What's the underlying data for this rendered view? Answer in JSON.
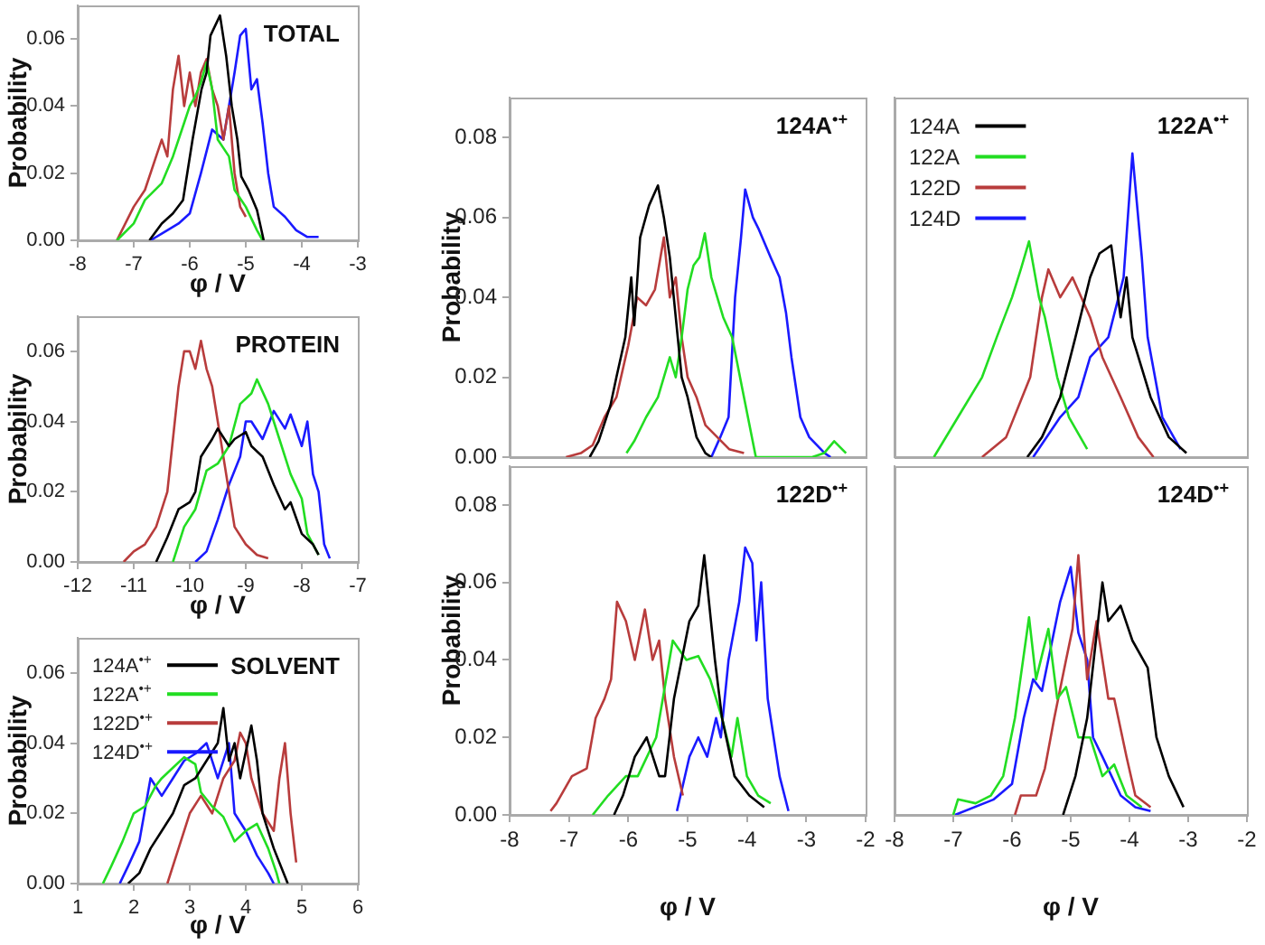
{
  "chart_data": [
    {
      "type": "line",
      "title": "TOTAL",
      "xlabel": "φ / V",
      "ylabel": "Probability",
      "xlim": [
        -8,
        -3
      ],
      "xticks": [
        -8,
        -7,
        -6,
        -5,
        -4,
        -3
      ],
      "ylim": [
        0,
        0.07
      ],
      "yticks": [
        {
          "value": 0,
          "label": "0.00"
        },
        {
          "value": 0.02,
          "label": "0.02"
        },
        {
          "value": 0.04,
          "label": "0.04"
        },
        {
          "value": 0.06,
          "label": "0.06"
        }
      ],
      "grid": false,
      "series": [
        {
          "color": "#000000",
          "x": [
            -6.72,
            -6.5,
            -6.3,
            -6.12,
            -5.95,
            -5.79,
            -5.7,
            -5.63,
            -5.46,
            -5.35,
            -5.25,
            -5.15,
            -5.08,
            -4.95,
            -4.8,
            -4.68
          ],
          "values": [
            0,
            0.005,
            0.008,
            0.012,
            0.03,
            0.045,
            0.05,
            0.061,
            0.067,
            0.055,
            0.04,
            0.03,
            0.019,
            0.015,
            0.009,
            0
          ]
        },
        {
          "color": "#22dd22",
          "x": [
            -7.3,
            -7.0,
            -6.8,
            -6.5,
            -6.3,
            -6.1,
            -6.0,
            -5.9,
            -5.8,
            -5.7,
            -5.6,
            -5.5,
            -5.3,
            -5.2,
            -5.0,
            -4.8,
            -4.7
          ],
          "values": [
            0,
            0.005,
            0.012,
            0.017,
            0.025,
            0.035,
            0.04,
            0.043,
            0.047,
            0.053,
            0.045,
            0.03,
            0.025,
            0.015,
            0.01,
            0.003,
            0
          ]
        },
        {
          "color": "#b83c3c",
          "x": [
            -7.3,
            -7.0,
            -6.8,
            -6.6,
            -6.5,
            -6.4,
            -6.3,
            -6.2,
            -6.1,
            -6.0,
            -5.9,
            -5.8,
            -5.7,
            -5.6,
            -5.5,
            -5.4,
            -5.3,
            -5.2,
            -5.1,
            -5.0
          ],
          "values": [
            0,
            0.01,
            0.015,
            0.025,
            0.03,
            0.025,
            0.045,
            0.055,
            0.04,
            0.05,
            0.04,
            0.05,
            0.054,
            0.045,
            0.04,
            0.03,
            0.04,
            0.02,
            0.01,
            0.007
          ]
        },
        {
          "color": "#1a1aff",
          "x": [
            -6.7,
            -6.4,
            -6.2,
            -6.0,
            -5.8,
            -5.6,
            -5.4,
            -5.3,
            -5.2,
            -5.1,
            -5.0,
            -4.9,
            -4.8,
            -4.7,
            -4.6,
            -4.5,
            -4.3,
            -4.1,
            -3.9,
            -3.7
          ],
          "values": [
            0,
            0.003,
            0.005,
            0.008,
            0.02,
            0.033,
            0.03,
            0.04,
            0.05,
            0.061,
            0.063,
            0.045,
            0.048,
            0.035,
            0.02,
            0.01,
            0.007,
            0.003,
            0.001,
            0.001
          ]
        }
      ]
    },
    {
      "type": "line",
      "title": "PROTEIN",
      "xlabel": "φ / V",
      "ylabel": "Probability",
      "xlim": [
        -12,
        -7
      ],
      "xticks": [
        -12,
        -11,
        -10,
        -9,
        -8,
        -7
      ],
      "ylim": [
        0,
        0.07
      ],
      "yticks": [
        {
          "value": 0,
          "label": "0.00"
        },
        {
          "value": 0.02,
          "label": "0.02"
        },
        {
          "value": 0.04,
          "label": "0.04"
        },
        {
          "value": 0.06,
          "label": "0.06"
        }
      ],
      "grid": false,
      "series": [
        {
          "color": "#000000",
          "x": [
            -10.6,
            -10.4,
            -10.2,
            -10.0,
            -9.9,
            -9.8,
            -9.6,
            -9.5,
            -9.3,
            -9.2,
            -9.0,
            -8.9,
            -8.7,
            -8.5,
            -8.3,
            -8.2,
            -8.0,
            -7.8,
            -7.7
          ],
          "values": [
            0,
            0.007,
            0.015,
            0.017,
            0.02,
            0.03,
            0.035,
            0.038,
            0.033,
            0.035,
            0.037,
            0.033,
            0.03,
            0.022,
            0.015,
            0.017,
            0.008,
            0.005,
            0.002
          ]
        },
        {
          "color": "#22dd22",
          "x": [
            -10.3,
            -10.1,
            -9.9,
            -9.7,
            -9.5,
            -9.3,
            -9.1,
            -8.9,
            -8.8,
            -8.6,
            -8.4,
            -8.2,
            -8.0,
            -7.9,
            -7.7
          ],
          "values": [
            0,
            0.01,
            0.015,
            0.026,
            0.028,
            0.033,
            0.045,
            0.048,
            0.052,
            0.045,
            0.035,
            0.025,
            0.018,
            0.008,
            0.002
          ]
        },
        {
          "color": "#b83c3c",
          "x": [
            -11.18,
            -11.0,
            -10.8,
            -10.6,
            -10.4,
            -10.3,
            -10.2,
            -10.1,
            -10.0,
            -9.9,
            -9.8,
            -9.7,
            -9.6,
            -9.5,
            -9.4,
            -9.3,
            -9.2,
            -9.0,
            -8.8,
            -8.6
          ],
          "values": [
            0,
            0.003,
            0.005,
            0.01,
            0.02,
            0.035,
            0.05,
            0.06,
            0.06,
            0.055,
            0.063,
            0.055,
            0.05,
            0.04,
            0.03,
            0.02,
            0.01,
            0.005,
            0.002,
            0.001
          ]
        },
        {
          "color": "#1a1aff",
          "x": [
            -9.9,
            -9.7,
            -9.5,
            -9.3,
            -9.1,
            -9.0,
            -8.9,
            -8.7,
            -8.5,
            -8.3,
            -8.2,
            -8.0,
            -7.9,
            -7.8,
            -7.7,
            -7.6,
            -7.5
          ],
          "values": [
            0,
            0.003,
            0.012,
            0.022,
            0.03,
            0.04,
            0.04,
            0.035,
            0.043,
            0.038,
            0.042,
            0.033,
            0.04,
            0.025,
            0.02,
            0.005,
            0.001
          ]
        }
      ]
    },
    {
      "type": "line",
      "title": "SOLVENT",
      "xlabel": "φ / V",
      "ylabel": "Probability",
      "xlim": [
        1,
        6
      ],
      "xticks": [
        1,
        2,
        3,
        4,
        5,
        6
      ],
      "ylim": [
        0,
        0.07
      ],
      "yticks": [
        {
          "value": 0,
          "label": "0.00"
        },
        {
          "value": 0.02,
          "label": "0.02"
        },
        {
          "value": 0.04,
          "label": "0.04"
        },
        {
          "value": 0.06,
          "label": "0.06"
        }
      ],
      "grid": false,
      "legend": "top left",
      "series": [
        {
          "name": "124A$^{•+}$",
          "color": "#000000",
          "x": [
            1.9,
            2.1,
            2.3,
            2.5,
            2.7,
            2.9,
            3.1,
            3.3,
            3.5,
            3.6,
            3.7,
            3.8,
            3.9,
            4.1,
            4.2,
            4.3,
            4.5,
            4.7,
            4.75
          ],
          "values": [
            0,
            0.003,
            0.01,
            0.015,
            0.02,
            0.028,
            0.03,
            0.035,
            0.04,
            0.05,
            0.035,
            0.04,
            0.03,
            0.045,
            0.035,
            0.02,
            0.01,
            0.002,
            0
          ]
        },
        {
          "name": "122A$^{•+}$",
          "color": "#22dd22",
          "x": [
            1.45,
            1.6,
            1.8,
            2.0,
            2.2,
            2.4,
            2.5,
            2.7,
            2.9,
            3.1,
            3.2,
            3.4,
            3.6,
            3.8,
            4.0,
            4.2,
            4.4,
            4.55,
            4.6
          ],
          "values": [
            0,
            0.005,
            0.012,
            0.02,
            0.022,
            0.028,
            0.03,
            0.033,
            0.036,
            0.034,
            0.026,
            0.022,
            0.019,
            0.012,
            0.015,
            0.017,
            0.01,
            0.003,
            0
          ]
        },
        {
          "name": "122D$^{•+}$",
          "color": "#b83c3c",
          "x": [
            2.6,
            2.8,
            3.0,
            3.2,
            3.4,
            3.6,
            3.8,
            3.9,
            4.0,
            4.1,
            4.3,
            4.5,
            4.6,
            4.7,
            4.8,
            4.9
          ],
          "values": [
            0,
            0.01,
            0.02,
            0.025,
            0.02,
            0.03,
            0.035,
            0.043,
            0.04,
            0.03,
            0.02,
            0.015,
            0.03,
            0.04,
            0.02,
            0.006
          ]
        },
        {
          "name": "124D$^{•+}$",
          "color": "#1a1aff",
          "x": [
            1.75,
            1.9,
            2.1,
            2.3,
            2.5,
            2.7,
            2.9,
            3.1,
            3.3,
            3.5,
            3.7,
            3.8,
            4.0,
            4.2,
            4.4,
            4.5
          ],
          "values": [
            0,
            0.005,
            0.012,
            0.03,
            0.025,
            0.03,
            0.035,
            0.037,
            0.04,
            0.03,
            0.04,
            0.02,
            0.015,
            0.008,
            0.003,
            0
          ]
        }
      ]
    },
    {
      "type": "line",
      "title": "124A$^{•+}$",
      "ylabel": "Probability",
      "xlim": [
        -8,
        -2
      ],
      "ylim": [
        0,
        0.09
      ],
      "yticks": [
        {
          "value": 0,
          "label": "0.00"
        },
        {
          "value": 0.02,
          "label": "0.02"
        },
        {
          "value": 0.04,
          "label": "0.04"
        },
        {
          "value": 0.06,
          "label": "0.06"
        },
        {
          "value": 0.08,
          "label": "0.08"
        }
      ],
      "grid": false,
      "tick_labels": "y",
      "series": [
        {
          "color": "#000000",
          "x": [
            -6.65,
            -6.5,
            -6.3,
            -6.2,
            -6.05,
            -5.95,
            -5.9,
            -5.8,
            -5.65,
            -5.5,
            -5.4,
            -5.3,
            -5.2,
            -5.1,
            -5.0,
            -4.85,
            -4.7,
            -4.6
          ],
          "values": [
            0,
            0.004,
            0.013,
            0.02,
            0.03,
            0.045,
            0.033,
            0.055,
            0.063,
            0.068,
            0.06,
            0.05,
            0.035,
            0.02,
            0.015,
            0.005,
            0.001,
            0
          ]
        },
        {
          "color": "#22dd22",
          "x": [
            -6.03,
            -5.9,
            -5.7,
            -5.5,
            -5.3,
            -5.2,
            -5.1,
            -5.0,
            -4.9,
            -4.8,
            -4.71,
            -4.6,
            -4.5,
            -4.4,
            -4.25,
            -4.05,
            -3.85,
            -2.9,
            -2.7,
            -2.53,
            -2.33
          ],
          "values": [
            0.001,
            0.004,
            0.01,
            0.015,
            0.025,
            0.02,
            0.03,
            0.042,
            0.048,
            0.05,
            0.056,
            0.045,
            0.04,
            0.035,
            0.03,
            0.015,
            0,
            0,
            0.001,
            0.004,
            0.001
          ]
        },
        {
          "color": "#b83c3c",
          "x": [
            -7.05,
            -6.8,
            -6.6,
            -6.4,
            -6.2,
            -6.0,
            -5.85,
            -5.7,
            -5.55,
            -5.4,
            -5.3,
            -5.2,
            -5.1,
            -5.0,
            -4.85,
            -4.7,
            -4.5,
            -4.3,
            -4.05
          ],
          "values": [
            0,
            0.001,
            0.003,
            0.01,
            0.015,
            0.028,
            0.04,
            0.038,
            0.042,
            0.055,
            0.04,
            0.045,
            0.03,
            0.02,
            0.015,
            0.008,
            0.005,
            0.002,
            0.001
          ]
        },
        {
          "color": "#1a1aff",
          "x": [
            -4.6,
            -4.45,
            -4.31,
            -4.2,
            -4.1,
            -4.03,
            -3.9,
            -3.8,
            -3.6,
            -3.45,
            -3.34,
            -3.25,
            -3.1,
            -2.95,
            -2.69,
            -2.59
          ],
          "values": [
            0,
            0.005,
            0.01,
            0.04,
            0.055,
            0.067,
            0.06,
            0.057,
            0.05,
            0.045,
            0.036,
            0.025,
            0.01,
            0.005,
            0.001,
            0
          ]
        }
      ]
    },
    {
      "type": "line",
      "title": "122A$^{•+}$",
      "xlim": [
        -8,
        -2
      ],
      "ylim": [
        0,
        0.09
      ],
      "grid": false,
      "tick_labels": false,
      "legend": "top left",
      "series": [
        {
          "name": "124A",
          "color": "#000000",
          "x": [
            -5.74,
            -5.49,
            -5.18,
            -4.92,
            -4.67,
            -4.51,
            -4.31,
            -4.15,
            -4.05,
            -3.95,
            -3.64,
            -3.33,
            -3.03
          ],
          "values": [
            0,
            0.005,
            0.015,
            0.03,
            0.045,
            0.051,
            0.053,
            0.035,
            0.045,
            0.03,
            0.015,
            0.005,
            0.001
          ]
        },
        {
          "name": "122A",
          "color": "#22dd22",
          "x": [
            -7.33,
            -6.92,
            -6.51,
            -6.26,
            -6.0,
            -5.85,
            -5.71,
            -5.54,
            -5.44,
            -5.23,
            -5.03,
            -4.72
          ],
          "values": [
            0,
            0.01,
            0.02,
            0.03,
            0.04,
            0.047,
            0.054,
            0.04,
            0.035,
            0.02,
            0.01,
            0.002
          ]
        },
        {
          "name": "122D",
          "color": "#b83c3c",
          "x": [
            -6.51,
            -6.1,
            -5.69,
            -5.49,
            -5.38,
            -5.18,
            -4.97,
            -4.67,
            -4.46,
            -4.15,
            -3.85,
            -3.59
          ],
          "values": [
            0,
            0.005,
            0.02,
            0.04,
            0.047,
            0.04,
            0.045,
            0.035,
            0.025,
            0.015,
            0.005,
            0
          ]
        },
        {
          "name": "124D",
          "color": "#1a1aff",
          "x": [
            -5.64,
            -5.18,
            -4.87,
            -4.67,
            -4.36,
            -4.1,
            -3.95,
            -3.79,
            -3.69,
            -3.44,
            -3.13
          ],
          "values": [
            0,
            0.01,
            0.015,
            0.025,
            0.03,
            0.045,
            0.076,
            0.05,
            0.03,
            0.01,
            0.002
          ]
        }
      ]
    },
    {
      "type": "line",
      "title": "122D$^{•+}$",
      "xlabel": "φ / V",
      "ylabel": "Probability",
      "xlim": [
        -8,
        -2
      ],
      "xticks": [
        -8,
        -7,
        -6,
        -5,
        -4,
        -3,
        -2
      ],
      "ylim": [
        0,
        0.09
      ],
      "yticks": [
        {
          "value": 0,
          "label": "0.00"
        },
        {
          "value": 0.02,
          "label": "0.02"
        },
        {
          "value": 0.04,
          "label": "0.04"
        },
        {
          "value": 0.06,
          "label": "0.06"
        },
        {
          "value": 0.08,
          "label": "0.08"
        }
      ],
      "grid": false,
      "series": [
        {
          "color": "#000000",
          "x": [
            -6.24,
            -6.09,
            -5.89,
            -5.69,
            -5.48,
            -5.38,
            -5.23,
            -4.97,
            -4.82,
            -4.72,
            -4.54,
            -4.42,
            -4.21,
            -3.96,
            -3.71
          ],
          "values": [
            0,
            0.005,
            0.015,
            0.02,
            0.01,
            0.01,
            0.03,
            0.05,
            0.054,
            0.067,
            0.04,
            0.025,
            0.01,
            0.005,
            0.002
          ]
        },
        {
          "color": "#22dd22",
          "x": [
            -6.6,
            -6.34,
            -6.04,
            -5.84,
            -5.53,
            -5.25,
            -5.02,
            -4.82,
            -4.62,
            -4.42,
            -4.26,
            -4.16,
            -4.0,
            -3.81,
            -3.6
          ],
          "values": [
            0,
            0.005,
            0.01,
            0.01,
            0.02,
            0.045,
            0.04,
            0.041,
            0.035,
            0.025,
            0.015,
            0.025,
            0.01,
            0.005,
            0.003
          ]
        },
        {
          "color": "#b83c3c",
          "x": [
            -7.31,
            -7.21,
            -6.95,
            -6.7,
            -6.55,
            -6.4,
            -6.29,
            -6.19,
            -6.04,
            -5.89,
            -5.72,
            -5.59,
            -5.48,
            -5.38,
            -5.23,
            -5.08
          ],
          "values": [
            0.001,
            0.003,
            0.01,
            0.012,
            0.025,
            0.03,
            0.035,
            0.055,
            0.05,
            0.04,
            0.053,
            0.04,
            0.045,
            0.03,
            0.015,
            0.005
          ]
        },
        {
          "color": "#1a1aff",
          "x": [
            -5.18,
            -4.97,
            -4.82,
            -4.67,
            -4.52,
            -4.44,
            -4.31,
            -4.13,
            -4.03,
            -3.91,
            -3.84,
            -3.76,
            -3.65,
            -3.45,
            -3.3
          ],
          "values": [
            0.001,
            0.015,
            0.02,
            0.015,
            0.025,
            0.02,
            0.04,
            0.055,
            0.069,
            0.065,
            0.045,
            0.06,
            0.03,
            0.01,
            0.001
          ]
        }
      ]
    },
    {
      "type": "line",
      "title": "124D$^{•+}$",
      "xlabel": "φ / V",
      "xlim": [
        -8,
        -2
      ],
      "xticks": [
        -8,
        -7,
        -6,
        -5,
        -4,
        -3,
        -2
      ],
      "ylim": [
        0,
        0.09
      ],
      "grid": false,
      "tick_labels": "x",
      "series": [
        {
          "color": "#000000",
          "x": [
            -5.13,
            -4.92,
            -4.72,
            -4.46,
            -4.36,
            -4.15,
            -3.95,
            -3.69,
            -3.54,
            -3.33,
            -3.08
          ],
          "values": [
            0,
            0.01,
            0.025,
            0.06,
            0.05,
            0.054,
            0.045,
            0.038,
            0.02,
            0.01,
            0.002
          ]
        },
        {
          "color": "#22dd22",
          "x": [
            -7.0,
            -6.92,
            -6.62,
            -6.36,
            -6.15,
            -5.95,
            -5.71,
            -5.59,
            -5.38,
            -5.23,
            -5.08,
            -4.87,
            -4.67,
            -4.46,
            -4.26,
            -4.05,
            -3.79
          ],
          "values": [
            0,
            0.004,
            0.003,
            0.005,
            0.01,
            0.025,
            0.051,
            0.035,
            0.048,
            0.03,
            0.033,
            0.02,
            0.02,
            0.01,
            0.013,
            0.005,
            0.002
          ]
        },
        {
          "color": "#b83c3c",
          "x": [
            -5.95,
            -5.85,
            -5.59,
            -5.44,
            -5.28,
            -5.08,
            -4.97,
            -4.87,
            -4.72,
            -4.56,
            -4.36,
            -4.26,
            -4.05,
            -3.9,
            -3.64
          ],
          "values": [
            0,
            0.005,
            0.005,
            0.012,
            0.025,
            0.04,
            0.048,
            0.067,
            0.035,
            0.05,
            0.03,
            0.03,
            0.015,
            0.005,
            0.002
          ]
        },
        {
          "color": "#1a1aff",
          "x": [
            -6.97,
            -6.31,
            -6.0,
            -5.8,
            -5.64,
            -5.49,
            -5.18,
            -5.0,
            -4.87,
            -4.72,
            -4.62,
            -4.46,
            -4.15,
            -3.9,
            -3.64
          ],
          "values": [
            0,
            0.004,
            0.008,
            0.025,
            0.035,
            0.032,
            0.055,
            0.064,
            0.047,
            0.04,
            0.02,
            0.015,
            0.005,
            0.002,
            0.001
          ]
        }
      ]
    }
  ]
}
